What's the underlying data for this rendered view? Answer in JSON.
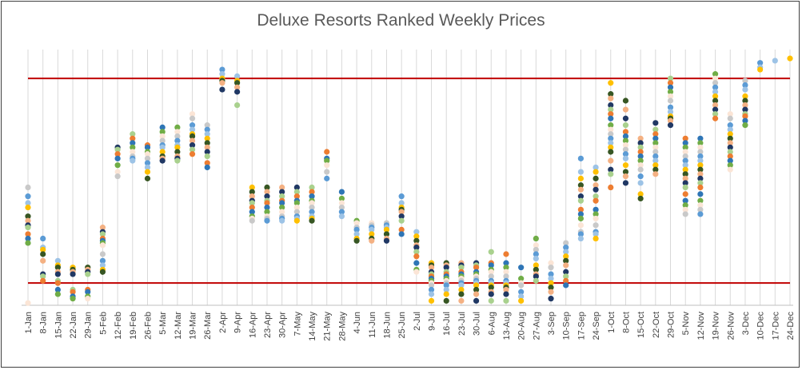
{
  "chart_data": {
    "type": "scatter",
    "title": "Deluxe Resorts Ranked Weekly Prices",
    "xlabel": "",
    "ylabel": "",
    "grid": "vertical",
    "legend": "none",
    "categories": [
      "1-Jan",
      "8-Jan",
      "15-Jan",
      "22-Jan",
      "29-Jan",
      "5-Feb",
      "12-Feb",
      "19-Feb",
      "26-Feb",
      "5-Mar",
      "12-Mar",
      "19-Mar",
      "26-Mar",
      "2-Apr",
      "9-Apr",
      "16-Apr",
      "23-Apr",
      "30-Apr",
      "7-May",
      "14-May",
      "21-May",
      "28-May",
      "4-Jun",
      "11-Jun",
      "18-Jun",
      "25-Jun",
      "2-Jul",
      "9-Jul",
      "16-Jul",
      "23-Jul",
      "30-Jul",
      "6-Aug",
      "13-Aug",
      "20-Aug",
      "27-Aug",
      "3-Sep",
      "10-Sep",
      "17-Sep",
      "24-Sep",
      "1-Oct",
      "8-Oct",
      "15-Oct",
      "22-Oct",
      "29-Oct",
      "5-Nov",
      "12-Nov",
      "19-Nov",
      "26-Nov",
      "3-Dec",
      "10-Dec",
      "17-Dec",
      "24-Dec"
    ],
    "reference_lines": [
      {
        "value": 100,
        "color": "#c00000"
      },
      {
        "value": 8,
        "color": "#c00000"
      }
    ],
    "ylim": [
      -2,
      113
    ],
    "values": [
      [
        51,
        47,
        44,
        42,
        38,
        36,
        34,
        33,
        30,
        28,
        26,
        -1
      ],
      [
        28,
        24,
        23,
        21,
        18,
        12,
        11,
        9
      ],
      [
        18,
        16,
        15,
        13,
        12,
        9,
        8,
        5,
        3
      ],
      [
        15,
        14,
        13,
        12,
        5,
        4,
        2,
        1
      ],
      [
        15,
        14,
        13,
        12,
        5,
        4,
        2,
        1
      ],
      [
        33,
        31,
        30,
        28,
        27,
        26,
        25,
        21,
        18,
        16,
        14,
        13
      ],
      [
        69,
        68,
        66,
        64,
        61,
        58,
        56
      ],
      [
        75,
        73,
        71,
        69,
        67,
        65,
        64,
        63
      ],
      [
        70,
        69,
        67,
        66,
        64,
        62,
        60,
        58,
        55
      ],
      [
        78,
        76,
        74,
        72,
        70,
        69,
        67,
        65,
        64,
        63
      ],
      [
        78,
        76,
        74,
        72,
        70,
        69,
        67,
        65,
        64,
        63
      ],
      [
        84,
        82,
        79,
        77,
        75,
        74,
        72,
        70,
        68,
        66
      ],
      [
        79,
        77,
        75,
        73,
        71,
        69,
        67,
        65,
        62,
        60
      ],
      [
        104,
        102,
        100,
        99,
        98,
        95
      ],
      [
        101,
        99,
        98,
        96,
        94,
        88
      ],
      [
        51,
        49,
        47,
        45,
        44,
        42,
        40,
        38,
        37,
        36
      ],
      [
        51,
        49,
        47,
        45,
        44,
        42,
        40,
        38,
        37,
        36
      ],
      [
        51,
        49,
        47,
        45,
        44,
        42,
        40,
        38,
        37,
        36
      ],
      [
        51,
        49,
        47,
        45,
        44,
        42,
        40,
        38,
        37,
        36
      ],
      [
        51,
        49,
        47,
        45,
        44,
        42,
        40,
        38,
        37,
        36
      ],
      [
        67,
        64,
        63,
        61,
        58,
        55
      ],
      [
        49,
        46,
        44,
        42,
        40,
        38
      ],
      [
        36,
        35,
        33,
        32,
        30,
        28,
        27
      ],
      [
        35,
        34,
        33,
        32,
        30,
        28,
        27
      ],
      [
        35,
        34,
        33,
        32,
        30,
        28,
        27
      ],
      [
        47,
        44,
        42,
        41,
        40,
        38,
        36,
        32,
        30
      ],
      [
        31,
        29,
        27,
        25,
        24,
        22,
        20,
        17,
        14,
        13
      ],
      [
        17,
        16,
        15,
        13,
        12,
        11,
        10,
        9,
        8,
        7,
        5,
        3,
        0
      ],
      [
        17,
        16,
        15,
        13,
        12,
        11,
        10,
        9,
        8,
        7,
        5,
        3,
        0
      ],
      [
        17,
        16,
        15,
        13,
        12,
        11,
        10,
        9,
        8,
        7,
        5,
        3,
        0
      ],
      [
        17,
        16,
        15,
        13,
        12,
        11,
        10,
        9,
        8,
        7,
        5,
        3,
        0
      ],
      [
        22,
        17,
        16,
        14,
        13,
        11,
        9,
        8,
        7,
        6,
        4,
        3,
        0
      ],
      [
        21,
        17,
        15,
        13,
        11,
        9,
        8,
        7,
        6,
        5,
        3,
        0
      ],
      [
        15,
        10,
        8,
        7,
        4,
        2,
        0
      ],
      [
        28,
        25,
        23,
        21,
        19,
        16,
        14,
        12,
        11,
        9
      ],
      [
        17,
        15,
        12,
        10,
        8,
        6,
        4,
        1
      ],
      [
        26,
        24,
        22,
        20,
        18,
        16,
        13,
        11,
        9,
        7
      ],
      [
        64,
        58,
        55,
        52,
        50,
        47,
        45,
        41,
        39,
        37,
        34,
        31,
        30,
        28
      ],
      [
        60,
        58,
        55,
        52,
        50,
        47,
        45,
        41,
        39,
        37,
        34,
        31,
        30,
        28
      ],
      [
        98,
        93,
        91,
        88,
        86,
        84,
        82,
        79,
        77,
        75,
        73,
        71,
        69,
        67,
        63,
        59,
        57,
        51
      ],
      [
        90,
        86,
        82,
        79,
        76,
        74,
        72,
        70,
        68,
        66,
        64,
        61,
        58,
        56,
        53
      ],
      [
        73,
        71,
        69,
        67,
        65,
        63,
        61,
        59,
        56,
        53,
        48,
        46
      ],
      [
        80,
        77,
        75,
        73,
        71,
        69,
        67,
        65,
        63,
        61,
        59,
        57
      ],
      [
        100,
        98,
        96,
        94,
        92,
        90,
        87,
        85,
        83,
        82,
        81,
        79
      ],
      [
        73,
        71,
        69,
        67,
        65,
        63,
        61,
        59,
        57,
        55,
        53,
        51,
        48,
        45,
        43,
        41,
        39
      ],
      [
        73,
        71,
        69,
        67,
        65,
        63,
        61,
        59,
        57,
        55,
        53,
        51,
        48,
        45,
        43,
        41,
        39
      ],
      [
        102,
        100,
        98,
        96,
        94,
        92,
        90,
        88,
        86,
        84,
        82
      ],
      [
        84,
        82,
        79,
        77,
        75,
        73,
        71,
        69,
        67,
        65,
        63,
        61,
        59
      ],
      [
        99,
        97,
        95,
        92,
        90,
        88,
        86,
        84,
        83,
        81,
        79
      ],
      [
        107,
        105,
        104
      ],
      [
        108
      ],
      [
        109
      ]
    ],
    "palette": [
      "#c9c9c9",
      "#5b9bd5",
      "#9dc3e6",
      "#ffc000",
      "#375623",
      "#f4b183",
      "#203864",
      "#a9d18e",
      "#ed7d31",
      "#2e75b6",
      "#70ad47",
      "#fbe5d6"
    ]
  }
}
